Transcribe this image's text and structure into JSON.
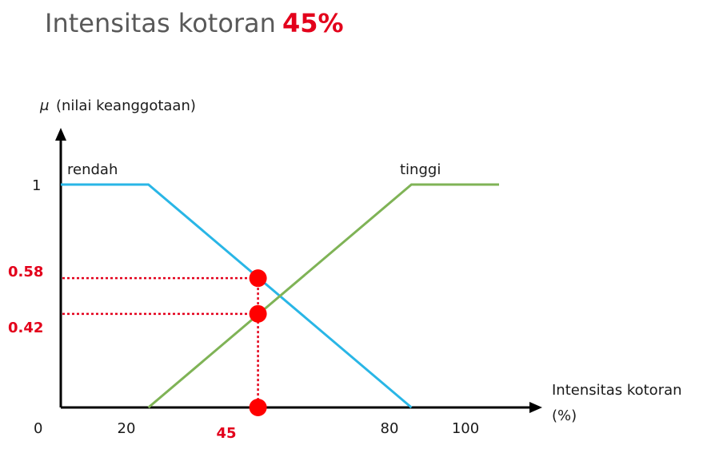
{
  "header": {
    "title_text": "Intensitas kotoran",
    "title_value": "45%"
  },
  "chart_data": {
    "type": "line",
    "yaxis": {
      "symbol": "μ",
      "label": "(nilai keanggotaan)",
      "range": [
        0,
        1
      ],
      "ticks": [
        "1"
      ]
    },
    "xaxis": {
      "label_line1": "Intensitas kotoran",
      "label_line2": "(%)",
      "range": [
        0,
        100
      ],
      "ticks": [
        "0",
        "20",
        "80",
        "100"
      ]
    },
    "series": [
      {
        "name": "rendah",
        "color": "#29b6e6",
        "points": [
          [
            0,
            1
          ],
          [
            20,
            1
          ],
          [
            80,
            0
          ]
        ]
      },
      {
        "name": "tinggi",
        "color": "#7fb356",
        "points": [
          [
            20,
            0
          ],
          [
            80,
            1
          ],
          [
            100,
            1
          ]
        ]
      }
    ],
    "highlight": {
      "x": 45,
      "x_label": "45",
      "markers": [
        {
          "y": 0.58,
          "label": "0.58"
        },
        {
          "y": 0.42,
          "label": "0.42"
        },
        {
          "y": 0
        }
      ],
      "color": "#e3001b"
    }
  }
}
